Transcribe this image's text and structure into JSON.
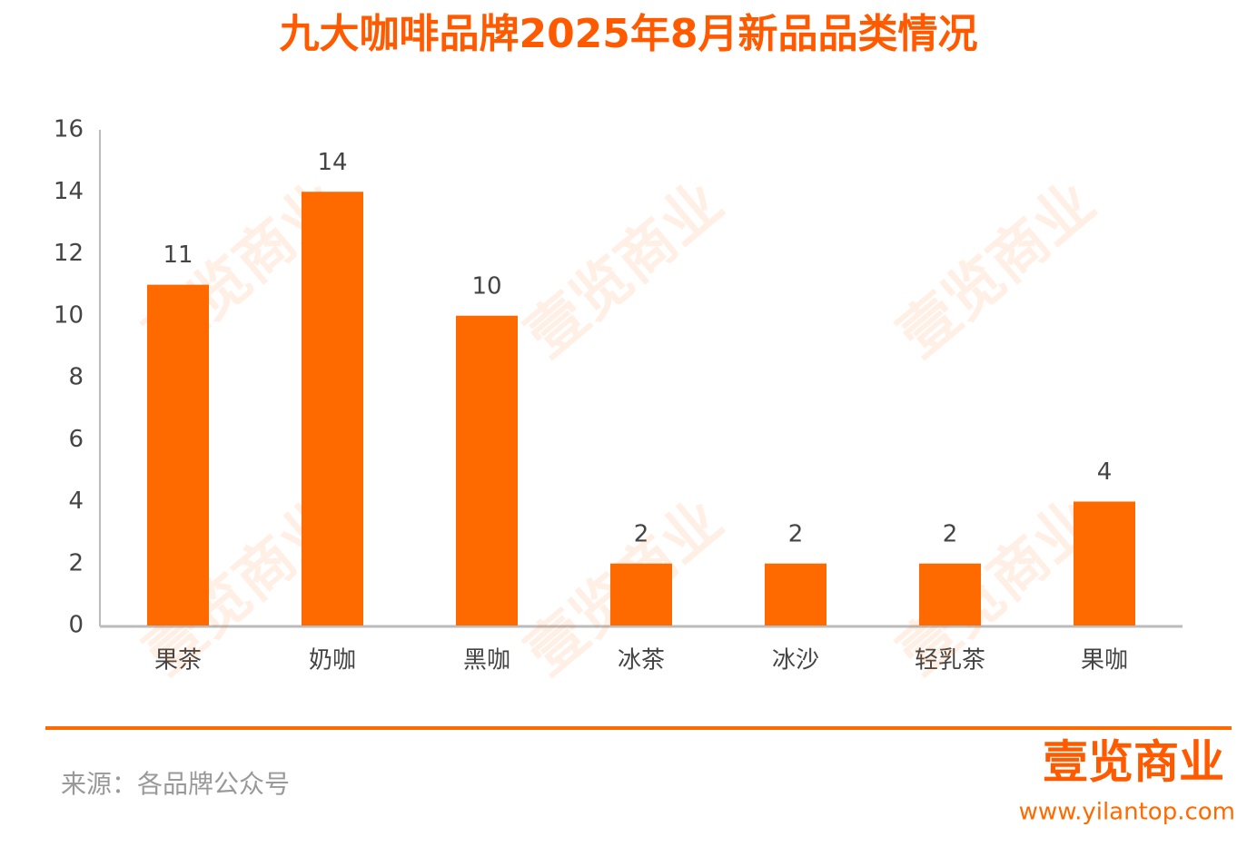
{
  "chart_data": {
    "type": "bar",
    "title": "九大咖啡品牌2025年8月新品品类情况",
    "categories": [
      "果茶",
      "奶咖",
      "黑咖",
      "冰茶",
      "冰沙",
      "轻乳茶",
      "果咖"
    ],
    "values": [
      11,
      14,
      10,
      2,
      2,
      2,
      4
    ],
    "color": "#ff6a00",
    "ylim": [
      0,
      16
    ],
    "yticks": [
      0,
      2,
      4,
      6,
      8,
      10,
      12,
      14,
      16
    ],
    "grid": false,
    "source": "来源：各品牌公众号",
    "logo": "壹览商业",
    "url": "www.yilantop.com",
    "watermark": "壹览商业"
  }
}
